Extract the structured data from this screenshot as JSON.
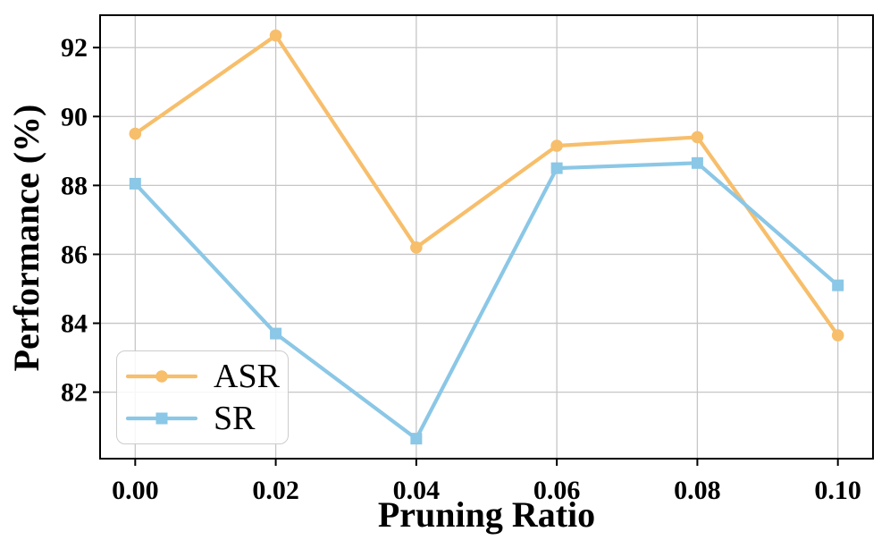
{
  "chart_data": {
    "type": "line",
    "title": "",
    "xlabel": "Pruning Ratio",
    "ylabel": "Performance (%)",
    "x": [
      0.0,
      0.02,
      0.04,
      0.06,
      0.08,
      0.1
    ],
    "x_tick_labels": [
      "0.00",
      "0.02",
      "0.04",
      "0.06",
      "0.08",
      "0.10"
    ],
    "y_ticks": [
      82,
      84,
      86,
      88,
      90,
      92
    ],
    "xlim": [
      -0.005,
      0.105
    ],
    "ylim": [
      80.07,
      92.94
    ],
    "grid": true,
    "legend_position": "lower-left",
    "series": [
      {
        "name": "ASR",
        "marker": "circle",
        "color": "#F7BE6B",
        "values": [
          89.5,
          92.35,
          86.2,
          89.15,
          89.4,
          83.65
        ]
      },
      {
        "name": "SR",
        "marker": "square",
        "color": "#8BC7E6",
        "values": [
          88.05,
          83.7,
          80.65,
          88.5,
          88.65,
          85.1
        ]
      }
    ]
  },
  "colors": {
    "grid": "#c6c6c6",
    "axis": "#000000",
    "asr_orange": "#F7BE6B",
    "sr_blue": "#8BC7E6",
    "legend_border": "#cccccc"
  }
}
